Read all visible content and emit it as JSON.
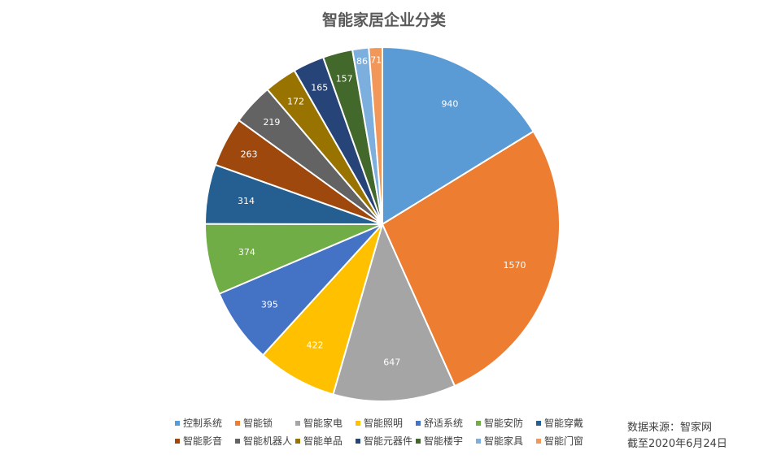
{
  "chart_data": {
    "type": "pie",
    "title": "智能家居企业分类",
    "categories": [
      "控制系统",
      "智能锁",
      "智能家电",
      "智能照明",
      "舒适系统",
      "智能安防",
      "智能穿戴",
      "智能影音",
      "智能机器人",
      "智能单品",
      "智能元器件",
      "智能楼宇",
      "智能家具",
      "智能门窗"
    ],
    "values": [
      940,
      1570,
      647,
      422,
      395,
      374,
      314,
      263,
      219,
      172,
      165,
      157,
      86,
      71
    ],
    "colors": [
      "#5B9BD5",
      "#ED7D31",
      "#A5A5A5",
      "#FFC000",
      "#4472C4",
      "#70AD47",
      "#255E91",
      "#9E480E",
      "#636363",
      "#997300",
      "#264478",
      "#43682B",
      "#7CAFDD",
      "#F1975A"
    ],
    "legend_position": "bottom"
  },
  "source": {
    "line1": "数据来源：智家网",
    "line2": "截至2020年6月24日"
  }
}
